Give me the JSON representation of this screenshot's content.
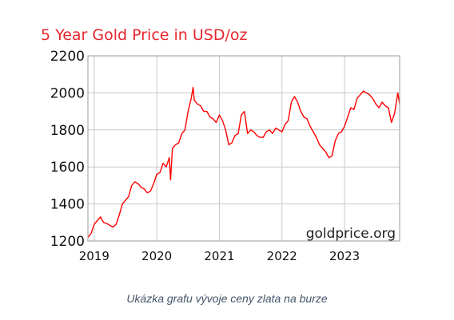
{
  "chart_data": {
    "type": "line",
    "title": "5 Year Gold Price in USD/oz",
    "watermark": "goldprice.org",
    "xlabel": "",
    "ylabel": "",
    "xlim": [
      2018.9,
      2023.88
    ],
    "ylim": [
      1200,
      2200
    ],
    "y_ticks": [
      1200,
      1400,
      1600,
      1800,
      2000,
      2200
    ],
    "x_ticks": [
      2019,
      2020,
      2021,
      2022,
      2023
    ],
    "x_tick_labels": [
      "2019",
      "2020",
      "2021",
      "2022",
      "2023"
    ],
    "grid": true,
    "legend": "none",
    "line_color": "#ff0000",
    "title_color": "#e8262d",
    "grid_color": "#c8c8c8",
    "series": [
      {
        "x": [
          2018.9,
          2018.95,
          2019.0,
          2019.05,
          2019.1,
          2019.15,
          2019.2,
          2019.25,
          2019.3,
          2019.35,
          2019.4,
          2019.45,
          2019.5,
          2019.55,
          2019.6,
          2019.65,
          2019.7,
          2019.75,
          2019.8,
          2019.85,
          2019.9,
          2019.95,
          2020.0,
          2020.05,
          2020.1,
          2020.15,
          2020.2,
          2020.22,
          2020.25,
          2020.3,
          2020.35,
          2020.4,
          2020.45,
          2020.5,
          2020.55,
          2020.58,
          2020.6,
          2020.65,
          2020.7,
          2020.75,
          2020.8,
          2020.85,
          2020.9,
          2020.95,
          2021.0,
          2021.05,
          2021.1,
          2021.15,
          2021.2,
          2021.25,
          2021.3,
          2021.35,
          2021.4,
          2021.45,
          2021.5,
          2021.55,
          2021.6,
          2021.65,
          2021.7,
          2021.75,
          2021.8,
          2021.85,
          2021.9,
          2021.95,
          2022.0,
          2022.05,
          2022.1,
          2022.15,
          2022.2,
          2022.25,
          2022.3,
          2022.35,
          2022.4,
          2022.45,
          2022.5,
          2022.55,
          2022.6,
          2022.65,
          2022.7,
          2022.75,
          2022.8,
          2022.85,
          2022.9,
          2022.95,
          2023.0,
          2023.05,
          2023.1,
          2023.15,
          2023.2,
          2023.25,
          2023.3,
          2023.35,
          2023.4,
          2023.45,
          2023.5,
          2023.55,
          2023.6,
          2023.65,
          2023.7,
          2023.75,
          2023.8,
          2023.85,
          2023.88
        ],
        "values": [
          1220,
          1240,
          1290,
          1310,
          1330,
          1300,
          1295,
          1285,
          1275,
          1290,
          1340,
          1400,
          1420,
          1440,
          1500,
          1520,
          1510,
          1490,
          1480,
          1460,
          1470,
          1510,
          1560,
          1570,
          1620,
          1600,
          1650,
          1530,
          1700,
          1720,
          1730,
          1780,
          1800,
          1900,
          1970,
          2030,
          1960,
          1940,
          1930,
          1900,
          1900,
          1870,
          1860,
          1840,
          1880,
          1850,
          1800,
          1720,
          1730,
          1770,
          1780,
          1880,
          1900,
          1780,
          1800,
          1790,
          1770,
          1760,
          1760,
          1790,
          1800,
          1780,
          1810,
          1800,
          1790,
          1830,
          1850,
          1950,
          1980,
          1950,
          1900,
          1870,
          1860,
          1820,
          1790,
          1760,
          1720,
          1700,
          1680,
          1650,
          1660,
          1740,
          1780,
          1790,
          1820,
          1870,
          1920,
          1910,
          1970,
          1990,
          2010,
          2000,
          1990,
          1970,
          1940,
          1920,
          1950,
          1930,
          1920,
          1840,
          1890,
          2000,
          1940
        ]
      }
    ]
  },
  "caption": "Ukázka grafu vývoje ceny zlata na burze"
}
